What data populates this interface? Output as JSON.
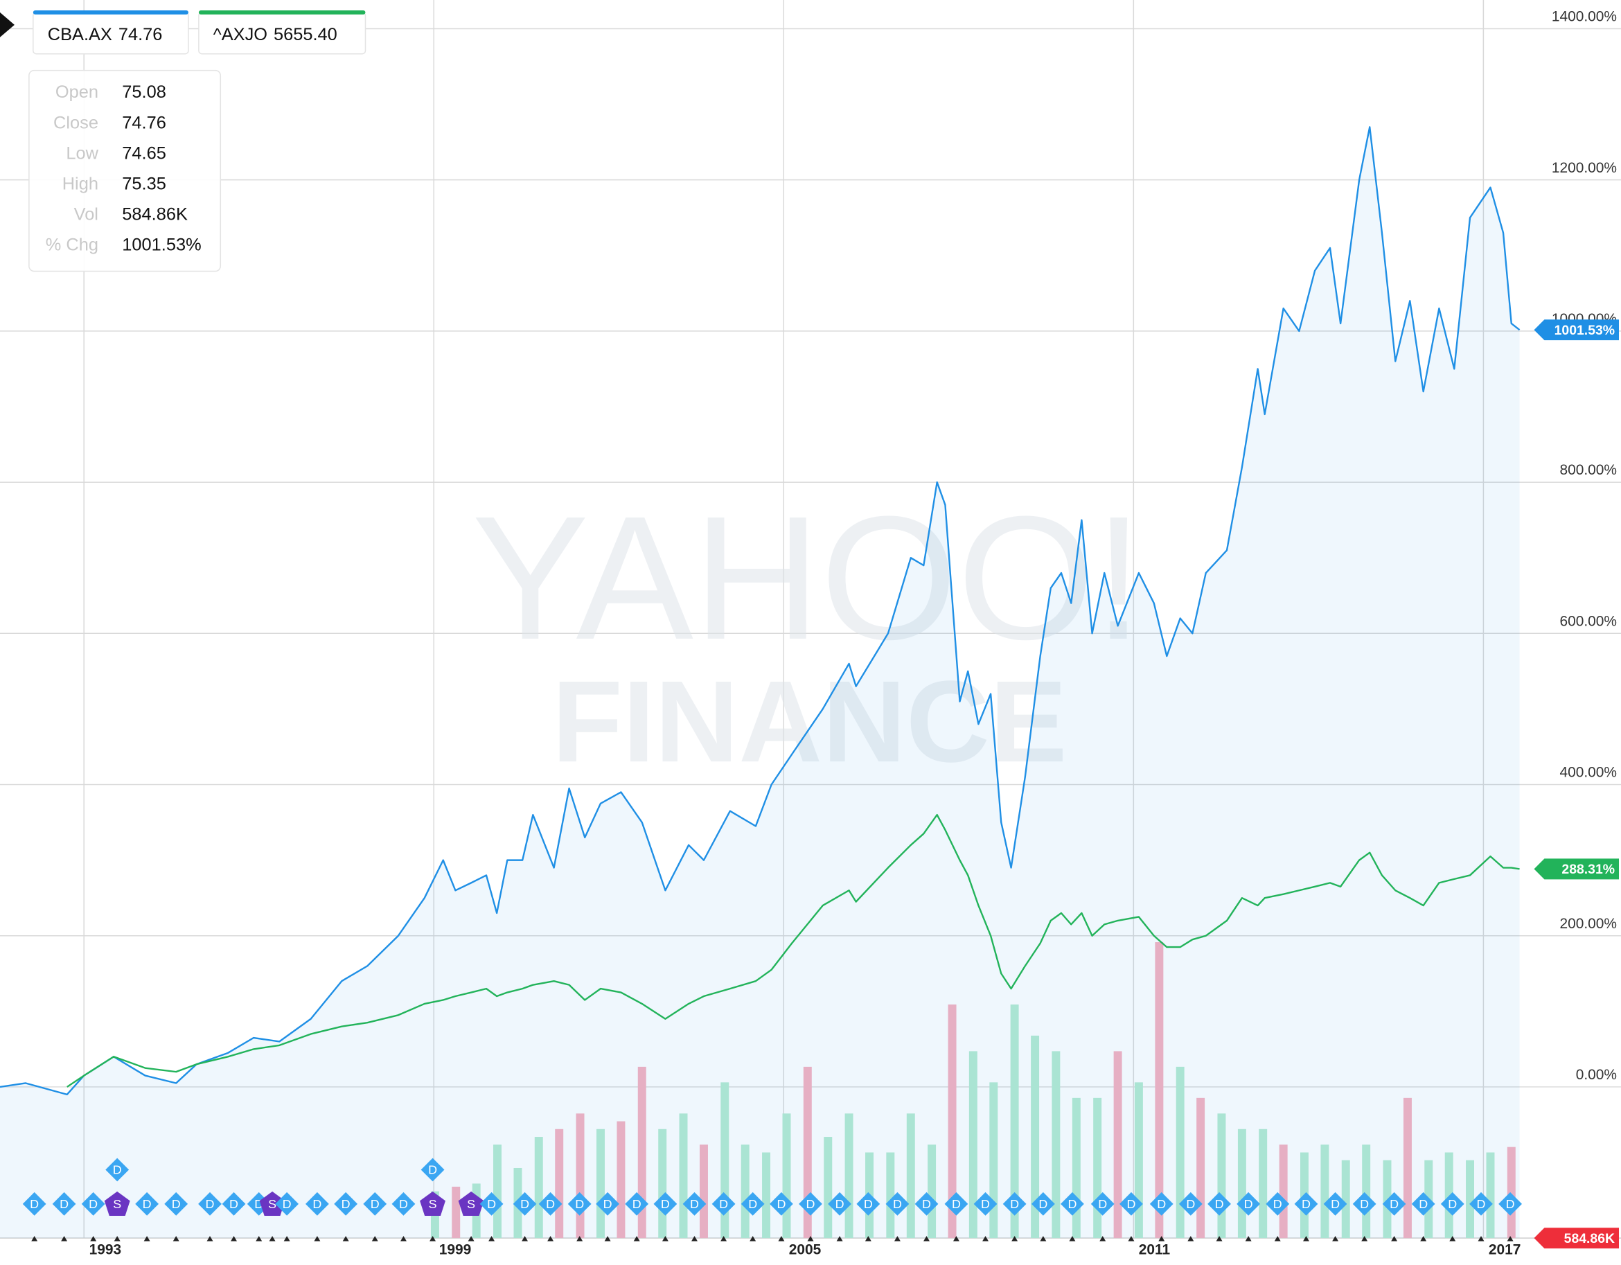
{
  "chart_data": {
    "type": "line",
    "watermark": [
      "YAHOO!",
      "FINANCE"
    ],
    "xlim": [
      1991.56,
      2017.62
    ],
    "xticks": [
      1993,
      1999,
      2005,
      2011,
      2017
    ],
    "ylim": [
      -200,
      1438
    ],
    "yticks": [
      {
        "value": 0,
        "label": "0.00%"
      },
      {
        "value": 200,
        "label": "200.00%"
      },
      {
        "value": 400,
        "label": "400.00%"
      },
      {
        "value": 600,
        "label": "600.00%"
      },
      {
        "value": 800,
        "label": "800.00%"
      },
      {
        "value": 1000,
        "label": "1000.00%"
      },
      {
        "value": 1200,
        "label": "1200.00%"
      },
      {
        "value": 1400,
        "label": "1400.00%"
      }
    ],
    "grid": true,
    "x": [
      1991.56,
      1992.0,
      1992.71,
      1993.0,
      1993.51,
      1994.05,
      1994.58,
      1994.93,
      1995.47,
      1995.91,
      1996.35,
      1996.89,
      1997.42,
      1997.86,
      1998.39,
      1998.84,
      1999.16,
      1999.37,
      1999.64,
      1999.9,
      2000.08,
      2000.26,
      2000.52,
      2000.7,
      2001.06,
      2001.32,
      2001.59,
      2001.86,
      2002.21,
      2002.57,
      2002.97,
      2003.37,
      2003.63,
      2004.08,
      2004.52,
      2004.79,
      2005.14,
      2005.67,
      2006.12,
      2006.24,
      2006.79,
      2007.18,
      2007.4,
      2007.63,
      2007.77,
      2008.02,
      2008.16,
      2008.34,
      2008.55,
      2008.73,
      2008.9,
      2009.14,
      2009.4,
      2009.58,
      2009.76,
      2009.93,
      2010.11,
      2010.29,
      2010.5,
      2010.73,
      2011.09,
      2011.35,
      2011.57,
      2011.8,
      2012.01,
      2012.24,
      2012.6,
      2012.86,
      2013.13,
      2013.25,
      2013.57,
      2013.84,
      2014.11,
      2014.37,
      2014.55,
      2014.87,
      2015.05,
      2015.26,
      2015.49,
      2015.74,
      2015.97,
      2016.24,
      2016.5,
      2016.77,
      2017.12,
      2017.34,
      2017.48,
      2017.62
    ],
    "series": [
      {
        "name": "CBA.AX",
        "quote": "74.76",
        "color": "#1f8fe5",
        "area": true,
        "end_label": "1001.53%",
        "values": [
          0,
          5,
          -10,
          15,
          40,
          15,
          5,
          30,
          45,
          65,
          60,
          90,
          140,
          160,
          200,
          250,
          300,
          260,
          270,
          280,
          230,
          300,
          300,
          360,
          290,
          395,
          330,
          375,
          390,
          350,
          260,
          320,
          300,
          365,
          345,
          400,
          440,
          500,
          560,
          530,
          600,
          700,
          690,
          800,
          770,
          510,
          550,
          480,
          520,
          350,
          290,
          410,
          570,
          660,
          680,
          640,
          750,
          600,
          680,
          610,
          680,
          640,
          570,
          620,
          600,
          680,
          710,
          820,
          950,
          890,
          1030,
          1000,
          1080,
          1110,
          1010,
          1200,
          1270,
          1130,
          960,
          1040,
          920,
          1030,
          950,
          1150,
          1190,
          1130,
          1010,
          1001.53
        ]
      },
      {
        "name": "^AXJO",
        "quote": "5655.40",
        "color": "#22b35a",
        "area": false,
        "end_label": "288.31%",
        "values": [
          null,
          null,
          0,
          15,
          40,
          25,
          20,
          30,
          40,
          50,
          55,
          70,
          80,
          85,
          95,
          110,
          115,
          120,
          125,
          130,
          120,
          125,
          130,
          135,
          140,
          135,
          115,
          130,
          125,
          110,
          90,
          110,
          120,
          130,
          140,
          155,
          190,
          240,
          260,
          245,
          290,
          320,
          335,
          360,
          340,
          300,
          280,
          240,
          200,
          150,
          130,
          160,
          190,
          220,
          230,
          215,
          230,
          200,
          215,
          220,
          225,
          200,
          185,
          185,
          195,
          200,
          220,
          250,
          240,
          250,
          255,
          260,
          265,
          270,
          265,
          300,
          310,
          280,
          260,
          250,
          240,
          270,
          275,
          280,
          305,
          290,
          290,
          288.31
        ]
      }
    ],
    "volume": {
      "ylim": [
        0,
        7950
      ],
      "end_label": "584.86K",
      "x": [
        1999.02,
        1999.38,
        1999.73,
        2000.09,
        2000.44,
        2000.8,
        2001.15,
        2001.51,
        2001.86,
        2002.21,
        2002.57,
        2002.92,
        2003.28,
        2003.63,
        2003.99,
        2004.34,
        2004.7,
        2005.05,
        2005.41,
        2005.76,
        2006.12,
        2006.47,
        2006.83,
        2007.18,
        2007.54,
        2007.89,
        2008.25,
        2008.6,
        2008.96,
        2009.31,
        2009.67,
        2010.02,
        2010.38,
        2010.73,
        2011.09,
        2011.44,
        2011.8,
        2012.15,
        2012.51,
        2012.86,
        2013.22,
        2013.57,
        2013.93,
        2014.28,
        2014.64,
        2014.99,
        2015.35,
        2015.7,
        2016.06,
        2016.41,
        2016.77,
        2017.12,
        2017.48
      ],
      "values": [
        300,
        330,
        350,
        600,
        450,
        650,
        700,
        800,
        700,
        750,
        1100,
        700,
        800,
        600,
        1000,
        600,
        550,
        800,
        1100,
        650,
        800,
        550,
        550,
        800,
        600,
        1500,
        1200,
        1000,
        1500,
        1300,
        1200,
        900,
        900,
        1200,
        1000,
        1900,
        1100,
        900,
        800,
        700,
        700,
        600,
        550,
        600,
        500,
        600,
        500,
        900,
        500,
        550,
        500,
        550,
        584.86
      ],
      "colors": [
        "#b5ebd2",
        "#f6b2c1",
        "#b5ebd2",
        "#b5ebd2",
        "#b5ebd2",
        "#b5ebd2",
        "#f6b2c1",
        "#f6b2c1",
        "#b5ebd2",
        "#f6b2c1",
        "#f6b2c1",
        "#b5ebd2",
        "#b5ebd2",
        "#f6b2c1",
        "#b5ebd2",
        "#b5ebd2",
        "#b5ebd2",
        "#b5ebd2",
        "#f6b2c1",
        "#b5ebd2",
        "#b5ebd2",
        "#b5ebd2",
        "#b5ebd2",
        "#b5ebd2",
        "#b5ebd2",
        "#f6b2c1",
        "#b5ebd2",
        "#b5ebd2",
        "#b5ebd2",
        "#b5ebd2",
        "#b5ebd2",
        "#b5ebd2",
        "#b5ebd2",
        "#f6b2c1",
        "#b5ebd2",
        "#f6b2c1",
        "#b5ebd2",
        "#f6b2c1",
        "#b5ebd2",
        "#b5ebd2",
        "#b5ebd2",
        "#f6b2c1",
        "#b5ebd2",
        "#b5ebd2",
        "#b5ebd2",
        "#b5ebd2",
        "#b5ebd2",
        "#f6b2c1",
        "#b5ebd2",
        "#b5ebd2",
        "#b5ebd2",
        "#b5ebd2",
        "#f6b2c1"
      ],
      "end_color": "#ee2e3a"
    },
    "events": [
      {
        "x": 1992.15,
        "label": "D"
      },
      {
        "x": 1992.66,
        "label": "D"
      },
      {
        "x": 1993.16,
        "label": "D"
      },
      {
        "x": 1993.57,
        "label": "S"
      },
      {
        "x": 1993.57,
        "label": "D"
      },
      {
        "x": 1994.08,
        "label": "D"
      },
      {
        "x": 1994.58,
        "label": "D"
      },
      {
        "x": 1995.16,
        "label": "D"
      },
      {
        "x": 1995.57,
        "label": "D"
      },
      {
        "x": 1996.0,
        "label": "D"
      },
      {
        "x": 1996.23,
        "label": "S"
      },
      {
        "x": 1996.48,
        "label": "D"
      },
      {
        "x": 1997.0,
        "label": "D"
      },
      {
        "x": 1997.49,
        "label": "D"
      },
      {
        "x": 1997.99,
        "label": "D"
      },
      {
        "x": 1998.48,
        "label": "D"
      },
      {
        "x": 1998.98,
        "label": "S"
      },
      {
        "x": 1998.98,
        "label": "D"
      },
      {
        "x": 1999.64,
        "label": "S"
      },
      {
        "x": 1999.99,
        "label": "D"
      },
      {
        "x": 2000.56,
        "label": "D"
      },
      {
        "x": 2001.0,
        "label": "D"
      },
      {
        "x": 2001.5,
        "label": "D"
      },
      {
        "x": 2001.98,
        "label": "D"
      },
      {
        "x": 2002.48,
        "label": "D"
      },
      {
        "x": 2002.97,
        "label": "D"
      },
      {
        "x": 2003.47,
        "label": "D"
      },
      {
        "x": 2003.97,
        "label": "D"
      },
      {
        "x": 2004.47,
        "label": "D"
      },
      {
        "x": 2004.96,
        "label": "D"
      },
      {
        "x": 2005.46,
        "label": "D"
      },
      {
        "x": 2005.96,
        "label": "D"
      },
      {
        "x": 2006.45,
        "label": "D"
      },
      {
        "x": 2006.95,
        "label": "D"
      },
      {
        "x": 2007.45,
        "label": "D"
      },
      {
        "x": 2007.96,
        "label": "D"
      },
      {
        "x": 2008.46,
        "label": "D"
      },
      {
        "x": 2008.96,
        "label": "D"
      },
      {
        "x": 2009.45,
        "label": "D"
      },
      {
        "x": 2009.95,
        "label": "D"
      },
      {
        "x": 2010.47,
        "label": "D"
      },
      {
        "x": 2010.96,
        "label": "D"
      },
      {
        "x": 2011.48,
        "label": "D"
      },
      {
        "x": 2011.98,
        "label": "D"
      },
      {
        "x": 2012.47,
        "label": "D"
      },
      {
        "x": 2012.97,
        "label": "D"
      },
      {
        "x": 2013.47,
        "label": "D"
      },
      {
        "x": 2013.96,
        "label": "D"
      },
      {
        "x": 2014.46,
        "label": "D"
      },
      {
        "x": 2014.96,
        "label": "D"
      },
      {
        "x": 2015.47,
        "label": "D"
      },
      {
        "x": 2015.97,
        "label": "D"
      },
      {
        "x": 2016.47,
        "label": "D"
      },
      {
        "x": 2016.96,
        "label": "D"
      },
      {
        "x": 2017.46,
        "label": "D"
      }
    ],
    "tooltip": [
      {
        "label": "Open",
        "value": "75.08"
      },
      {
        "label": "Close",
        "value": "74.76"
      },
      {
        "label": "Low",
        "value": "74.65"
      },
      {
        "label": "High",
        "value": "75.35"
      },
      {
        "label": "Vol",
        "value": "584.86K"
      },
      {
        "label": "% Chg",
        "value": "1001.53%"
      }
    ]
  }
}
